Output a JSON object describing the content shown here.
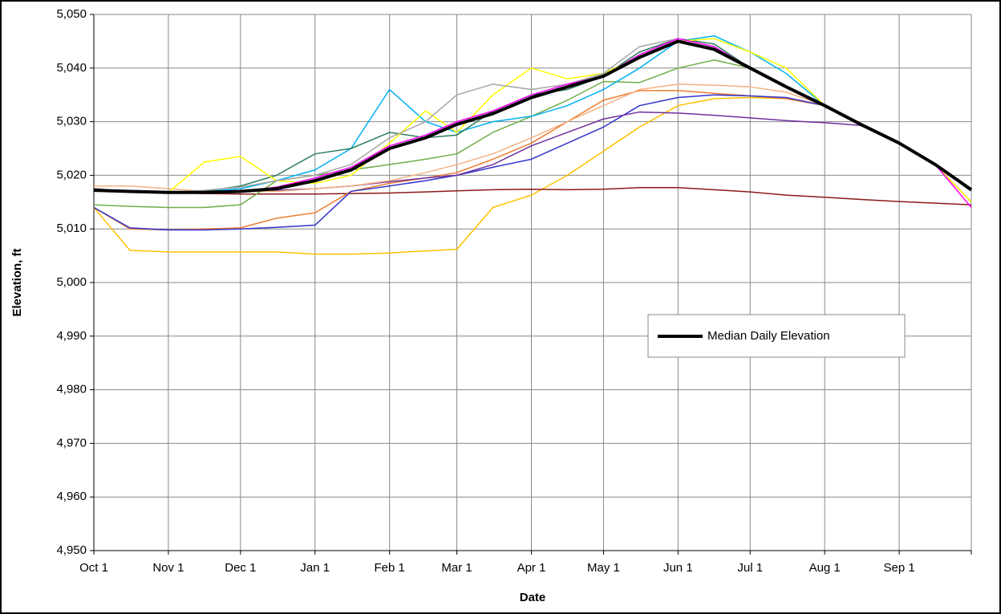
{
  "chart_data": {
    "type": "line",
    "x_label": "Date",
    "y_label": "Elevation, ft",
    "x": [
      0,
      15,
      31,
      46,
      61,
      76,
      92,
      107,
      123,
      138,
      151,
      166,
      182,
      197,
      212,
      227,
      243,
      258,
      273,
      288,
      304,
      319,
      335,
      350,
      365
    ],
    "xlim": [
      0,
      365
    ],
    "xticks": [
      {
        "value": 0,
        "label": "Oct 1"
      },
      {
        "value": 31,
        "label": "Nov 1"
      },
      {
        "value": 61,
        "label": "Dec 1"
      },
      {
        "value": 92,
        "label": "Jan 1"
      },
      {
        "value": 123,
        "label": "Feb 1"
      },
      {
        "value": 151,
        "label": "Mar 1"
      },
      {
        "value": 182,
        "label": "Apr 1"
      },
      {
        "value": 212,
        "label": "May 1"
      },
      {
        "value": 243,
        "label": "Jun 1"
      },
      {
        "value": 273,
        "label": "Jul 1"
      },
      {
        "value": 304,
        "label": "Aug 1"
      },
      {
        "value": 335,
        "label": "Sep 1"
      },
      {
        "value": 365,
        "label": ""
      }
    ],
    "ylim": [
      4950,
      5050
    ],
    "yticks": [
      {
        "value": 4950,
        "label": "4,950"
      },
      {
        "value": 4960,
        "label": "4,960"
      },
      {
        "value": 4970,
        "label": "4,970"
      },
      {
        "value": 4980,
        "label": "4,980"
      },
      {
        "value": 4990,
        "label": "4,990"
      },
      {
        "value": 5000,
        "label": "5,000"
      },
      {
        "value": 5010,
        "label": "5,010"
      },
      {
        "value": 5020,
        "label": "5,020"
      },
      {
        "value": 5030,
        "label": "5,030"
      },
      {
        "value": 5040,
        "label": "5,040"
      },
      {
        "value": 5050,
        "label": "5,050"
      }
    ],
    "grid": true,
    "legend_position": "right",
    "series": [
      {
        "color": "#ffc000",
        "width": 1.5,
        "values": [
          5014,
          5006,
          5005.7,
          5005.7,
          5005.7,
          5005.7,
          5005.3,
          5005.3,
          5005.5,
          5005.9,
          5006.2,
          5014,
          5016.3,
          5020,
          5024.5,
          5029,
          5033,
          5034.3,
          5034.5,
          5034.3,
          5033,
          5029.5,
          5026,
          5022,
          5015
        ]
      },
      {
        "color": "#8b1a1a",
        "width": 1.5,
        "values": [
          5017.5,
          5017,
          5016.8,
          5016.6,
          5016.5,
          5016.5,
          5016.5,
          5016.6,
          5016.7,
          5016.9,
          5017.1,
          5017.3,
          5017.4,
          5017.3,
          5017.4,
          5017.7,
          5017.7,
          5017.3,
          5016.9,
          5016.3,
          5015.9,
          5015.5,
          5015.1,
          5014.8,
          5014.5
        ]
      },
      {
        "color": "#ed7d31",
        "width": 1.5,
        "values": [
          5014,
          5010,
          5009.8,
          5010,
          5010.2,
          5012,
          5013,
          5017,
          5018.5,
          5019.5,
          5020.5,
          5023,
          5026,
          5030,
          5034,
          5035.8,
          5035.8,
          5035.3,
          5034.8,
          5034.3,
          5033,
          5029.5,
          5026,
          5022,
          5015
        ]
      },
      {
        "color": "#3333cc",
        "width": 1.5,
        "values": [
          5014,
          5010.2,
          5009.8,
          5009.8,
          5010,
          5010.3,
          5010.7,
          5017,
          5018,
          5019,
          5020,
          5021.5,
          5023,
          5026,
          5029,
          5033,
          5034.5,
          5035,
          5034.8,
          5034.5,
          5033,
          5029.5,
          5026,
          5022,
          5015
        ]
      },
      {
        "color": "#7030a0",
        "width": 1.5,
        "values": [
          5017.2,
          5017,
          5016.8,
          5016.8,
          5017,
          5017.2,
          5017.5,
          5018,
          5018.8,
          5019.5,
          5020,
          5022,
          5025.5,
          5028,
          5030.5,
          5031.8,
          5031.6,
          5031.2,
          5030.7,
          5030.2,
          5029.8,
          5029.3,
          5026,
          5022,
          5015
        ]
      },
      {
        "color": "#f4b183",
        "width": 1.5,
        "values": [
          5018,
          5018,
          5017.5,
          5017,
          5017,
          5017,
          5017.5,
          5018,
          5019,
          5020.5,
          5022,
          5024,
          5027,
          5030,
          5033,
          5036,
          5037,
          5036.8,
          5036.5,
          5035.5,
          5033,
          5029.5,
          5026,
          5022,
          5015
        ]
      },
      {
        "color": "#70ad47",
        "width": 1.5,
        "values": [
          5014.5,
          5014.2,
          5014,
          5014,
          5014.5,
          5019,
          5020,
          5021,
          5022,
          5023,
          5024,
          5028,
          5031,
          5034,
          5037.5,
          5037.3,
          5040,
          5041.5,
          5040,
          5036.5,
          5033,
          5029.5,
          5026,
          5022,
          5017
        ]
      },
      {
        "color": "#00b0f0",
        "width": 1.5,
        "values": [
          5017.2,
          5017,
          5016.8,
          5017,
          5017.5,
          5019,
          5021,
          5025,
          5036,
          5030,
          5028,
          5030,
          5031,
          5033,
          5036,
          5040,
          5045,
          5046,
          5043,
          5039,
          5033,
          5029.5,
          5026,
          5022,
          5017
        ]
      },
      {
        "color": "#2e7d5b",
        "width": 1.5,
        "values": [
          5017.2,
          5017,
          5016.8,
          5017,
          5018,
          5020,
          5024,
          5025,
          5028,
          5027,
          5027.5,
          5032,
          5035,
          5036,
          5038.5,
          5043,
          5045.5,
          5044.5,
          5040,
          5036.5,
          5033,
          5029.5,
          5026,
          5022,
          5017
        ]
      },
      {
        "color": "#ffff00",
        "width": 1.5,
        "values": [
          5017.2,
          5017,
          5016.8,
          5022.5,
          5023.5,
          5019,
          5018.5,
          5020,
          5026,
          5032,
          5028,
          5035,
          5040,
          5038,
          5039,
          5042,
          5045,
          5045.5,
          5043,
          5040,
          5033,
          5029.5,
          5026,
          5022,
          5015
        ]
      },
      {
        "color": "#a6a6a6",
        "width": 1.5,
        "values": [
          5017.2,
          5017,
          5016.8,
          5017.2,
          5017.8,
          5019,
          5020,
          5022,
          5027,
          5030,
          5035,
          5037,
          5036,
          5037,
          5039,
          5044,
          5045.5,
          5044,
          5040,
          5036.5,
          5033,
          5029.5,
          5026,
          5022,
          5017
        ]
      },
      {
        "color": "#ff00ff",
        "width": 1.5,
        "values": [
          5017.2,
          5017,
          5016.8,
          5016.8,
          5017,
          5017.8,
          5019.5,
          5021.5,
          5025.5,
          5027.5,
          5030,
          5032,
          5035,
          5037,
          5038.5,
          5042.5,
          5045.5,
          5044,
          5040,
          5036.5,
          5033,
          5029.5,
          5026,
          5022,
          5014
        ]
      },
      {
        "name": "Median Daily Elevation",
        "color": "#000000",
        "width": 4,
        "values": [
          5017.2,
          5017,
          5016.8,
          5016.8,
          5017,
          5017.5,
          5019,
          5021,
          5025,
          5027,
          5029.5,
          5031.5,
          5034.5,
          5036.5,
          5038.5,
          5042,
          5045,
          5043.5,
          5040,
          5036.5,
          5033,
          5029.5,
          5026,
          5022,
          5017.3
        ]
      }
    ]
  }
}
